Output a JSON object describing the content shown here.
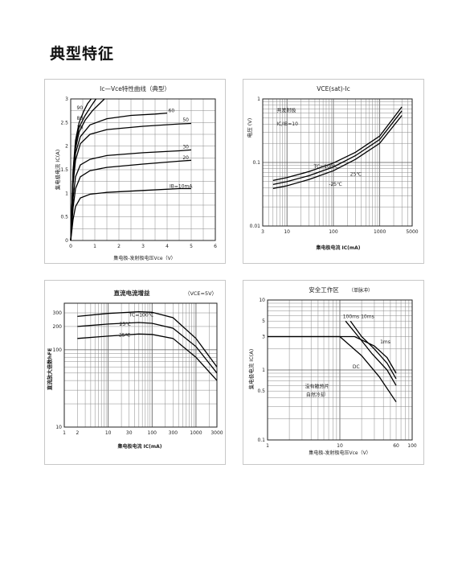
{
  "page": {
    "title": "典型特征"
  },
  "chart_data": [
    {
      "id": "c1",
      "type": "line",
      "title": "Ic—Vce特性曲线（典型）",
      "xlabel": "集电极-发射极电压Vce（V）",
      "ylabel": "集电极电流 IC(A)",
      "xlim": [
        0,
        6
      ],
      "ylim": [
        0,
        3
      ],
      "xticks": [
        0,
        1,
        2,
        3,
        4,
        5,
        6
      ],
      "yticks": [
        0,
        0.5,
        1,
        1.5,
        2,
        2.5,
        3
      ],
      "xtick_labels": [
        "0",
        "1",
        "2",
        "3",
        "4",
        "5",
        "6"
      ],
      "ytick_labels": [
        "0",
        "0.5",
        "1",
        "1.5",
        "2",
        "2.5",
        "3"
      ],
      "grid": true,
      "series": [
        {
          "name": "IB=10mA",
          "points": [
            [
              0,
              0
            ],
            [
              0.1,
              0.45
            ],
            [
              0.2,
              0.72
            ],
            [
              0.4,
              0.9
            ],
            [
              0.8,
              0.98
            ],
            [
              1.5,
              1.02
            ],
            [
              3,
              1.06
            ],
            [
              4.5,
              1.1
            ],
            [
              5,
              1.1
            ]
          ]
        },
        {
          "name": "20",
          "points": [
            [
              0,
              0
            ],
            [
              0.1,
              0.7
            ],
            [
              0.2,
              1.1
            ],
            [
              0.4,
              1.35
            ],
            [
              0.8,
              1.48
            ],
            [
              1.5,
              1.55
            ],
            [
              3,
              1.62
            ],
            [
              4.5,
              1.68
            ],
            [
              5,
              1.7
            ]
          ]
        },
        {
          "name": "30",
          "points": [
            [
              0,
              0
            ],
            [
              0.1,
              0.9
            ],
            [
              0.2,
              1.35
            ],
            [
              0.4,
              1.6
            ],
            [
              0.8,
              1.72
            ],
            [
              1.5,
              1.8
            ],
            [
              3,
              1.86
            ],
            [
              4.5,
              1.9
            ],
            [
              5,
              1.92
            ]
          ]
        },
        {
          "name": "50",
          "points": [
            [
              0,
              0
            ],
            [
              0.1,
              1.2
            ],
            [
              0.2,
              1.7
            ],
            [
              0.4,
              2.05
            ],
            [
              0.8,
              2.25
            ],
            [
              1.5,
              2.35
            ],
            [
              3,
              2.42
            ],
            [
              4.5,
              2.47
            ],
            [
              5,
              2.48
            ]
          ]
        },
        {
          "name": "60",
          "points": [
            [
              0,
              0
            ],
            [
              0.1,
              1.3
            ],
            [
              0.2,
              1.85
            ],
            [
              0.4,
              2.2
            ],
            [
              0.8,
              2.45
            ],
            [
              1.5,
              2.58
            ],
            [
              2.5,
              2.65
            ],
            [
              3.5,
              2.68
            ],
            [
              4,
              2.7
            ]
          ]
        },
        {
          "name": "70",
          "points": [
            [
              0,
              0
            ],
            [
              0.1,
              1.4
            ],
            [
              0.2,
              1.95
            ],
            [
              0.35,
              2.3
            ],
            [
              0.6,
              2.55
            ],
            [
              0.9,
              2.75
            ],
            [
              1.2,
              2.9
            ],
            [
              1.4,
              3.0
            ]
          ]
        },
        {
          "name": "80",
          "points": [
            [
              0,
              0
            ],
            [
              0.1,
              1.45
            ],
            [
              0.2,
              2.05
            ],
            [
              0.35,
              2.4
            ],
            [
              0.6,
              2.65
            ],
            [
              0.85,
              2.85
            ],
            [
              1.05,
              3.0
            ]
          ]
        },
        {
          "name": "90",
          "points": [
            [
              0,
              0
            ],
            [
              0.1,
              1.5
            ],
            [
              0.2,
              2.12
            ],
            [
              0.35,
              2.5
            ],
            [
              0.55,
              2.75
            ],
            [
              0.7,
              2.9
            ],
            [
              0.85,
              3.0
            ]
          ]
        }
      ]
    },
    {
      "id": "c2",
      "type": "line",
      "title": "VCE(sat)-Ic",
      "xlabel": "集电极电流 IC(mA)",
      "ylabel": "电压 (V)",
      "xscale": "log",
      "yscale": "log",
      "xlim": [
        3,
        5000
      ],
      "ylim": [
        0.01,
        1
      ],
      "xticks": [
        3,
        10,
        100,
        1000,
        5000
      ],
      "yticks": [
        0.01,
        0.1,
        1
      ],
      "xtick_labels": [
        "3",
        "10",
        "100",
        "1000",
        "5000"
      ],
      "ytick_labels": [
        "0.01",
        "0.1",
        "1"
      ],
      "grid": true,
      "annotations": [
        "共发射极",
        "IC/IB=10",
        "TC=100℃",
        "25℃",
        "-25℃"
      ],
      "series": [
        {
          "name": "TC=100℃",
          "points": [
            [
              5,
              0.052
            ],
            [
              10,
              0.058
            ],
            [
              30,
              0.072
            ],
            [
              100,
              0.098
            ],
            [
              300,
              0.145
            ],
            [
              1000,
              0.26
            ],
            [
              3000,
              0.75
            ]
          ]
        },
        {
          "name": "25℃",
          "points": [
            [
              5,
              0.045
            ],
            [
              10,
              0.05
            ],
            [
              30,
              0.062
            ],
            [
              100,
              0.085
            ],
            [
              300,
              0.128
            ],
            [
              1000,
              0.23
            ],
            [
              3000,
              0.65
            ]
          ]
        },
        {
          "name": "-25℃",
          "points": [
            [
              5,
              0.039
            ],
            [
              10,
              0.043
            ],
            [
              30,
              0.054
            ],
            [
              100,
              0.074
            ],
            [
              300,
              0.112
            ],
            [
              1000,
              0.2
            ],
            [
              3000,
              0.55
            ]
          ]
        }
      ]
    },
    {
      "id": "c3",
      "type": "line",
      "title": "直流电流增益",
      "subtitle": "（VCE=5V）",
      "xlabel": "集电极电流 IC(mA)",
      "ylabel": "直流放大倍数hFE",
      "xscale": "log",
      "yscale": "log",
      "xlim": [
        1,
        3000
      ],
      "ylim": [
        10,
        400
      ],
      "xticks": [
        1,
        2,
        10,
        30,
        100,
        300,
        1000,
        3000
      ],
      "yticks": [
        10,
        100,
        200,
        300
      ],
      "xtick_labels": [
        "1",
        "2",
        "10",
        "30",
        "100",
        "300",
        "1000",
        "3000"
      ],
      "ytick_labels": [
        "10",
        "100",
        "200",
        "300"
      ],
      "grid": true,
      "annotations": [
        "TC=100℃",
        "25℃",
        "-25℃"
      ],
      "series": [
        {
          "name": "TC=100℃",
          "points": [
            [
              2,
              270
            ],
            [
              10,
              295
            ],
            [
              50,
              310
            ],
            [
              100,
              305
            ],
            [
              300,
              260
            ],
            [
              1000,
              140
            ],
            [
              3000,
              60
            ]
          ]
        },
        {
          "name": "25℃",
          "points": [
            [
              2,
              200
            ],
            [
              10,
              215
            ],
            [
              50,
              225
            ],
            [
              100,
              220
            ],
            [
              300,
              190
            ],
            [
              1000,
              110
            ],
            [
              3000,
              50
            ]
          ]
        },
        {
          "name": "-25℃",
          "points": [
            [
              2,
              140
            ],
            [
              10,
              150
            ],
            [
              50,
              160
            ],
            [
              100,
              158
            ],
            [
              300,
              140
            ],
            [
              1000,
              80
            ],
            [
              3000,
              40
            ]
          ]
        }
      ]
    },
    {
      "id": "c4",
      "type": "line",
      "title": "安全工作区",
      "subtitle": "（单脉冲）",
      "xlabel": "集电极-发射极电压Vce（V）",
      "ylabel": "集电极电流 IC(A)",
      "xscale": "log",
      "yscale": "log",
      "xlim": [
        1,
        100
      ],
      "ylim": [
        0.1,
        10
      ],
      "xticks": [
        1,
        10,
        60,
        100
      ],
      "yticks": [
        0.1,
        0.5,
        1,
        3,
        5,
        10
      ],
      "xtick_labels": [
        "1",
        "10",
        "60",
        "100"
      ],
      "ytick_labels": [
        "0.1",
        "0.5",
        "1",
        "3",
        "5",
        "10"
      ],
      "grid": true,
      "annotations": [
        "100ms",
        "10ms",
        "1ms",
        "DC",
        "没有散热片",
        "自然冷却"
      ],
      "series": [
        {
          "name": "1ms",
          "points": [
            [
              1,
              3
            ],
            [
              16,
              3
            ],
            [
              30,
              2.2
            ],
            [
              45,
              1.5
            ],
            [
              60,
              0.9
            ]
          ]
        },
        {
          "name": "10ms",
          "points": [
            [
              14,
              5
            ],
            [
              20,
              3
            ],
            [
              30,
              2
            ],
            [
              45,
              1.25
            ],
            [
              60,
              0.75
            ]
          ]
        },
        {
          "name": "100ms",
          "points": [
            [
              12,
              5
            ],
            [
              18,
              3
            ],
            [
              28,
              1.7
            ],
            [
              45,
              1.0
            ],
            [
              60,
              0.6
            ]
          ]
        },
        {
          "name": "DC",
          "points": [
            [
              1,
              3
            ],
            [
              10,
              3
            ],
            [
              20,
              1.6
            ],
            [
              35,
              0.8
            ],
            [
              60,
              0.35
            ]
          ]
        }
      ]
    }
  ]
}
